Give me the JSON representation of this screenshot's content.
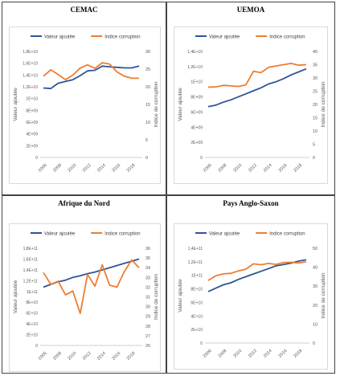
{
  "chart_data": [
    {
      "type": "line",
      "title": "CEMAC",
      "legend_position": "top",
      "grid": false,
      "x": [
        "2006",
        "2007",
        "2008",
        "2009",
        "2010",
        "2011",
        "2012",
        "2013",
        "2014",
        "2015",
        "2016",
        "2017",
        "2018",
        "2019"
      ],
      "x_tick_labels": [
        "2006",
        "2008",
        "2010",
        "2012",
        "2014",
        "2016",
        "2018"
      ],
      "ylabel": "Valeur ajoutée",
      "y2label": "Indice de corruption",
      "ylim": [
        0,
        18000000000
      ],
      "y_ticks": [
        "0",
        "2E+09",
        "4E+09",
        "6E+09",
        "8E+09",
        "1E+10",
        "1,2E+10",
        "1,4E+10",
        "1,6E+10",
        "1,8E+10"
      ],
      "y2lim": [
        0,
        30
      ],
      "y2_ticks": [
        "0",
        "5",
        "10",
        "15",
        "20",
        "25",
        "30"
      ],
      "series": [
        {
          "name": "Valeur ajoutée",
          "color": "#2f5597",
          "axis": "left",
          "values": [
            11800000000,
            11700000000,
            12600000000,
            12900000000,
            13200000000,
            13900000000,
            14700000000,
            14800000000,
            15500000000,
            15400000000,
            15300000000,
            15200000000,
            15200000000,
            15500000000
          ]
        },
        {
          "name": "Indice corruption",
          "color": "#ed7d31",
          "axis": "right",
          "values": [
            23,
            24.8,
            23.5,
            22,
            23.3,
            25.3,
            26.2,
            25.2,
            26.8,
            26.4,
            24.2,
            23,
            22.4,
            22.4
          ]
        }
      ]
    },
    {
      "type": "line",
      "title": "UEMOA",
      "legend_position": "top",
      "grid": false,
      "x": [
        "2006",
        "2007",
        "2008",
        "2009",
        "2010",
        "2011",
        "2012",
        "2013",
        "2014",
        "2015",
        "2016",
        "2017",
        "2018",
        "2019"
      ],
      "x_tick_labels": [
        "2006",
        "2008",
        "2010",
        "2012",
        "2014",
        "2016",
        "2018"
      ],
      "ylabel": "Valeur ajoutée",
      "y2label": "Indice de corruption",
      "ylim": [
        0,
        14000000000
      ],
      "y_ticks": [
        "0",
        "2E+09",
        "4E+09",
        "6E+09",
        "8E+09",
        "1E+10",
        "1,2E+10",
        "1,4E+10"
      ],
      "y2lim": [
        0,
        40
      ],
      "y2_ticks": [
        "0",
        "5",
        "10",
        "15",
        "20",
        "25",
        "30",
        "35",
        "40"
      ],
      "series": [
        {
          "name": "Valeur ajoutée",
          "color": "#2f5597",
          "axis": "left",
          "values": [
            6700000000,
            6900000000,
            7300000000,
            7600000000,
            8000000000,
            8400000000,
            8800000000,
            9200000000,
            9700000000,
            10000000000,
            10400000000,
            10900000000,
            11300000000,
            11700000000
          ]
        },
        {
          "name": "Indice corruption",
          "color": "#ed7d31",
          "axis": "right",
          "values": [
            26.5,
            26.6,
            27.2,
            27,
            26.8,
            27.4,
            32.5,
            32,
            34,
            34.5,
            35,
            35.5,
            34.8,
            35
          ]
        }
      ]
    },
    {
      "type": "line",
      "title": "Afrique du Nord",
      "legend_position": "top",
      "grid": false,
      "x": [
        "2006",
        "2007",
        "2008",
        "2009",
        "2010",
        "2011",
        "2012",
        "2013",
        "2014",
        "2015",
        "2016",
        "2017",
        "2018",
        "2019"
      ],
      "x_tick_labels": [
        "2006",
        "2008",
        "2010",
        "2012",
        "2014",
        "2016",
        "2018"
      ],
      "ylabel": "Valeur ajoutée",
      "y2label": "Indice de corruption",
      "ylim": [
        0,
        180000000000
      ],
      "y_ticks": [
        "0",
        "2E+10",
        "4E+10",
        "6E+10",
        "8E+10",
        "1E+11",
        "1,2E+11",
        "1,4E+11",
        "1,6E+11",
        "1,8E+11"
      ],
      "y2lim": [
        26,
        36
      ],
      "y2_ticks": [
        "26",
        "27",
        "28",
        "29",
        "30",
        "31",
        "32",
        "33",
        "34",
        "35",
        "36"
      ],
      "series": [
        {
          "name": "Valeur ajoutée",
          "color": "#2f5597",
          "axis": "left",
          "values": [
            108000000000,
            113000000000,
            118000000000,
            121000000000,
            126000000000,
            129000000000,
            133000000000,
            136000000000,
            140000000000,
            144000000000,
            148000000000,
            152000000000,
            156000000000,
            160000000000
          ]
        },
        {
          "name": "Indice corruption",
          "color": "#ed7d31",
          "axis": "right",
          "values": [
            33.5,
            32.3,
            32.6,
            31.2,
            31.6,
            29.3,
            33.3,
            32.1,
            34.3,
            32.2,
            32,
            33.6,
            34.8,
            34
          ]
        }
      ]
    },
    {
      "type": "line",
      "title": "Pays Anglo-Saxon",
      "legend_position": "top",
      "grid": false,
      "x": [
        "2006",
        "2007",
        "2008",
        "2009",
        "2010",
        "2011",
        "2012",
        "2013",
        "2014",
        "2015",
        "2016",
        "2017",
        "2018",
        "2019"
      ],
      "x_tick_labels": [
        "2006",
        "2008",
        "2010",
        "2012",
        "2014",
        "2016",
        "2018"
      ],
      "ylabel": "Valeur ajoutée",
      "y2label": "Indice de corruption",
      "ylim": [
        0,
        140000000000
      ],
      "y_ticks": [
        "0",
        "2E+10",
        "4E+10",
        "6E+10",
        "8E+10",
        "1E+11",
        "1,2E+11",
        "1,4E+11"
      ],
      "y2lim": [
        0,
        50
      ],
      "y2_ticks": [
        "0",
        "10",
        "20",
        "30",
        "40",
        "50"
      ],
      "series": [
        {
          "name": "Valeur ajoutée",
          "color": "#2f5597",
          "axis": "left",
          "values": [
            76000000000,
            81000000000,
            86000000000,
            89000000000,
            94000000000,
            98000000000,
            102000000000,
            106000000000,
            110000000000,
            114000000000,
            116000000000,
            118000000000,
            121000000000,
            123000000000
          ]
        },
        {
          "name": "Indice corruption",
          "color": "#ed7d31",
          "axis": "right",
          "values": [
            33,
            35.5,
            36.5,
            36.8,
            38,
            39,
            41.8,
            41.3,
            42,
            41.5,
            42.5,
            42.6,
            42.2,
            42.9
          ]
        }
      ]
    }
  ]
}
